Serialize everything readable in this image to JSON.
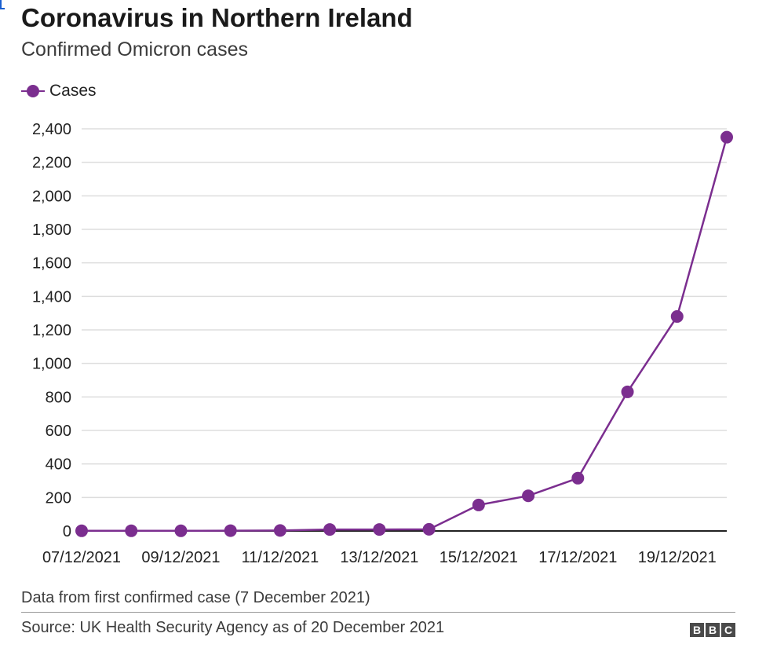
{
  "header": {
    "title": "Coronavirus in Northern Ireland",
    "subtitle": "Confirmed Omicron cases"
  },
  "legend": {
    "label": "Cases"
  },
  "footer": {
    "note": "Data from first confirmed case (7 December 2021)",
    "source": "Source: UK Health Security Agency as of 20 December 2021",
    "logo_letters": [
      "B",
      "B",
      "C"
    ]
  },
  "colors": {
    "series": "#7b2e8f",
    "grid": "#dddddd",
    "baseline": "#222222"
  },
  "chart_data": {
    "type": "line",
    "title": "Coronavirus in Northern Ireland",
    "subtitle": "Confirmed Omicron cases",
    "xlabel": "",
    "ylabel": "",
    "ylim": [
      0,
      2400
    ],
    "yticks": [
      0,
      200,
      400,
      600,
      800,
      1000,
      1200,
      1400,
      1600,
      1800,
      2000,
      2200,
      2400
    ],
    "ytick_labels": [
      "0",
      "200",
      "400",
      "600",
      "800",
      "1,000",
      "1,200",
      "1,400",
      "1,600",
      "1,800",
      "2,000",
      "2,200",
      "2,400"
    ],
    "xtick_labels": [
      "07/12/2021",
      "09/12/2021",
      "11/12/2021",
      "13/12/2021",
      "15/12/2021",
      "17/12/2021",
      "19/12/2021"
    ],
    "x": [
      "07/12/2021",
      "08/12/2021",
      "09/12/2021",
      "10/12/2021",
      "11/12/2021",
      "12/12/2021",
      "13/12/2021",
      "14/12/2021",
      "15/12/2021",
      "16/12/2021",
      "17/12/2021",
      "18/12/2021",
      "19/12/2021",
      "20/12/2021"
    ],
    "series": [
      {
        "name": "Cases",
        "values": [
          1,
          1,
          1,
          2,
          3,
          9,
          9,
          10,
          155,
          210,
          315,
          830,
          1280,
          2350
        ]
      }
    ],
    "grid": true,
    "legend_position": "top-left"
  }
}
